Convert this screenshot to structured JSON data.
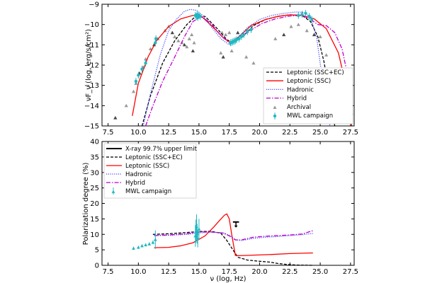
{
  "colors": {
    "leptonic_ssc_ec": "#000000",
    "leptonic_ssc": "#ff0000",
    "hadronic": "#4a4aff",
    "hybrid": "#bb00cc",
    "archival": "#999999",
    "mwl": "#20b8c0",
    "xray_limit": "#000000"
  },
  "chart_data": [
    {
      "type": "line",
      "panel": "top",
      "ylabel": "νF_ν (log, erg/s/cm²)",
      "xlabel": "",
      "xlim": [
        7,
        27.8
      ],
      "ylim": [
        -15,
        -9
      ],
      "xticks": [
        "7.5",
        "10.0",
        "12.5",
        "15.0",
        "17.5",
        "20.0",
        "22.5",
        "25.0",
        "27.5"
      ],
      "yticks": [
        "−15",
        "−14",
        "−13",
        "−12",
        "−11",
        "−10",
        "−9"
      ],
      "grid": false,
      "legend_position": "lower-right",
      "legend": [
        "Leptonic (SSC+EC)",
        "Leptonic (SSC)",
        "Hadronic",
        "Hybrid",
        "Archival",
        "MWL campaign"
      ],
      "series": [
        {
          "name": "Leptonic (SSC+EC)",
          "style": "dashed",
          "x": [
            10.3,
            11,
            12,
            13,
            14,
            14.8,
            15.5,
            16.5,
            17.3,
            17.8,
            18.5,
            19.5,
            20.5,
            21.5,
            22.5,
            23.5,
            24.2,
            24.8,
            25.3,
            25.8,
            26.2
          ],
          "y": [
            -15,
            -13.5,
            -11.9,
            -10.8,
            -10,
            -9.55,
            -9.6,
            -10.2,
            -10.75,
            -10.9,
            -10.65,
            -10.05,
            -9.75,
            -9.6,
            -9.52,
            -9.55,
            -9.85,
            -10.6,
            -11.8,
            -13.5,
            -15
          ]
        },
        {
          "name": "Leptonic (SSC)",
          "style": "solid",
          "x": [
            9.5,
            10,
            10.8,
            11.5,
            12.5,
            13.5,
            14.5,
            15.3,
            16.2,
            17,
            17.6,
            18.3,
            19.3,
            20.5,
            21.5,
            22.5,
            23.5,
            24.5,
            25.5,
            26.5,
            27.2,
            27.6
          ],
          "y": [
            -14.5,
            -12.9,
            -11.6,
            -10.8,
            -10.1,
            -9.72,
            -9.55,
            -9.65,
            -10.15,
            -10.65,
            -10.9,
            -10.6,
            -10.05,
            -9.75,
            -9.6,
            -9.52,
            -9.55,
            -9.72,
            -10.2,
            -11.4,
            -13.2,
            -15
          ]
        },
        {
          "name": "Hadronic",
          "style": "dotted",
          "x": [
            10.4,
            11,
            11.8,
            12.5,
            13.2,
            13.8,
            14.3,
            14.8,
            15.3,
            16,
            16.8,
            17.5,
            18.2,
            19,
            20,
            21,
            22,
            23,
            23.7,
            24.2,
            24.7,
            25.2,
            25.8
          ],
          "y": [
            -15,
            -13.4,
            -11.5,
            -10.3,
            -9.7,
            -9.35,
            -9.25,
            -9.3,
            -9.55,
            -10.1,
            -10.7,
            -11,
            -10.65,
            -10.15,
            -9.75,
            -9.55,
            -9.45,
            -9.38,
            -9.4,
            -9.65,
            -10.6,
            -12.8,
            -15
          ]
        },
        {
          "name": "Hybrid",
          "style": "dashdot",
          "x": [
            10.6,
            11.2,
            12,
            13,
            13.8,
            14.5,
            15.2,
            16,
            16.8,
            17.5,
            18.3,
            19.2,
            20.2,
            21.3,
            22.5,
            23.5,
            24.2,
            24.8,
            25.5,
            26.2,
            26.8,
            27.3,
            27.7
          ],
          "y": [
            -15,
            -14,
            -12.8,
            -11.6,
            -10.6,
            -9.85,
            -9.6,
            -9.95,
            -10.55,
            -10.9,
            -10.7,
            -10.3,
            -9.95,
            -9.72,
            -9.58,
            -9.55,
            -9.75,
            -10,
            -10.05,
            -10.4,
            -11.2,
            -12.6,
            -14.5
          ]
        }
      ],
      "scatter": [
        {
          "name": "Archival",
          "marker": "triangle",
          "x": [
            8.1,
            9.0,
            9.6,
            9.8,
            10.1,
            10.4,
            10.6,
            11.0,
            11.3,
            11.6,
            12.2,
            12.5,
            12.8,
            13.0,
            13.3,
            13.6,
            13.8,
            14.0,
            14.2,
            14.4,
            14.5,
            14.6,
            16.8,
            16.9,
            17.0,
            17.2,
            17.5,
            17.7,
            18.2,
            18.9,
            19.5,
            21.3,
            22.0,
            22.6,
            23.2,
            23.9,
            24.5,
            25.0,
            25.5
          ],
          "y": [
            -14.6,
            -14.0,
            -13.3,
            -12.9,
            -12.4,
            -12.1,
            -11.7,
            -11.2,
            -11.0,
            -10.7,
            -10.3,
            -10.1,
            -10.4,
            -10.6,
            -10.8,
            -10.9,
            -11.0,
            -11.1,
            -10.7,
            -10.5,
            -11.3,
            -10.9,
            -11.4,
            -10.4,
            -11.6,
            -10.5,
            -10.4,
            -11.3,
            -10.4,
            -11.6,
            -11.9,
            -10.7,
            -10.5,
            -10.1,
            -10.0,
            -10.3,
            -10.5,
            -10.6,
            -11.5
          ]
        },
        {
          "name": "MWL campaign",
          "marker": "star",
          "x": [
            9.8,
            10.0,
            10.3,
            10.6,
            11.4,
            11.45,
            14.7,
            14.8,
            14.85,
            14.9,
            15.0,
            15.1,
            17.6,
            17.7,
            17.8,
            17.9,
            18.0,
            18.1,
            18.3,
            18.5,
            18.7,
            19.0,
            19.3,
            23.2,
            23.5,
            23.8,
            24.1,
            24.3
          ],
          "y": [
            -12.8,
            -12.5,
            -12.2,
            -11.9,
            -10.9,
            -10.7,
            -9.55,
            -9.6,
            -9.5,
            -9.65,
            -9.55,
            -9.6,
            -10.9,
            -10.88,
            -10.85,
            -10.82,
            -10.8,
            -10.75,
            -10.7,
            -10.6,
            -10.5,
            -10.35,
            -10.25,
            -9.55,
            -9.5,
            -9.45,
            -9.6,
            -9.75
          ]
        }
      ]
    },
    {
      "type": "line",
      "panel": "bottom",
      "ylabel": "Polarization degree (%)",
      "xlabel": "ν (log, Hz)",
      "xlim": [
        7,
        27.8
      ],
      "ylim": [
        0,
        40
      ],
      "xticks": [
        "7.5",
        "10.0",
        "12.5",
        "15.0",
        "17.5",
        "20.0",
        "22.5",
        "25.0",
        "27.5"
      ],
      "yticks": [
        "0",
        "5",
        "10",
        "15",
        "20",
        "25",
        "30",
        "35",
        "40"
      ],
      "grid": false,
      "legend_position": "upper-left",
      "legend": [
        "X-ray 99.7% upper limit",
        "Leptonic (SSC+EC)",
        "Leptonic (SSC)",
        "Hadronic",
        "Hybrid",
        "MWL campaign"
      ],
      "series": [
        {
          "name": "Leptonic (SSC+EC)",
          "style": "dashed",
          "x": [
            11.2,
            12.5,
            14,
            15,
            16,
            16.8,
            17.3,
            17.8,
            18.2,
            19,
            20,
            20.8,
            21.5,
            22.2,
            23,
            23.7,
            24.4
          ],
          "y": [
            10,
            10.2,
            10.6,
            10.9,
            11,
            10.4,
            8,
            5,
            2.6,
            1.7,
            1.3,
            1.05,
            0.6,
            0.3,
            0.1,
            0.05,
            0
          ]
        },
        {
          "name": "Leptonic (SSC)",
          "style": "solid",
          "x": [
            11.3,
            12.5,
            13.5,
            14.5,
            15.5,
            16.2,
            16.7,
            17.1,
            17.3,
            17.5,
            17.7,
            18.0,
            18.3,
            19.5,
            21,
            22.5,
            24.4
          ],
          "y": [
            5.7,
            5.8,
            6.3,
            7.3,
            9.5,
            12.3,
            14.5,
            16.2,
            16.6,
            15,
            10,
            3.2,
            3.1,
            3.3,
            3.5,
            3.8,
            4.0
          ]
        },
        {
          "name": "Hadronic",
          "style": "dotted",
          "x": [
            11.3,
            12.5,
            14,
            15,
            16,
            17,
            17.5,
            18,
            18.5,
            19.5,
            20.5,
            21.5,
            22.5,
            23.5,
            24.4
          ],
          "y": [
            9.6,
            9.7,
            10.0,
            10.5,
            10.7,
            10.5,
            9.7,
            8.3,
            8.0,
            8.7,
            9.1,
            9.3,
            9.6,
            9.9,
            10.3
          ]
        },
        {
          "name": "Hybrid",
          "style": "dashdot",
          "x": [
            11.3,
            12.5,
            14,
            15,
            16,
            17,
            17.5,
            18,
            18.5,
            19.5,
            20.5,
            21.5,
            22.5,
            23.5,
            24.4
          ],
          "y": [
            9.6,
            9.8,
            10.2,
            10.8,
            10.8,
            10.4,
            9.5,
            8.2,
            8.2,
            9.1,
            9.4,
            9.6,
            9.8,
            10.1,
            11.2
          ]
        }
      ],
      "upper_limit": {
        "name": "X-ray 99.7% upper limit",
        "x": [
          17.8,
          18.3
        ],
        "y": 14
      },
      "scatter": [
        {
          "name": "MWL campaign",
          "marker": "triangle",
          "x": [
            9.6,
            10.0,
            10.3,
            10.6,
            10.9,
            11.2,
            11.4,
            14.7,
            14.75,
            14.8,
            14.85,
            14.9,
            15.0
          ],
          "y": [
            5.5,
            5.8,
            6.3,
            6.6,
            6.9,
            7.4,
            8.3,
            9.5,
            11.0,
            12.5,
            10.2,
            8.6,
            11.7
          ],
          "yerr": [
            0.5,
            0.5,
            0.5,
            0.5,
            0.5,
            0.6,
            3.0,
            3.5,
            3.8,
            4.0,
            3.2,
            2.8,
            3.3
          ]
        }
      ]
    }
  ]
}
